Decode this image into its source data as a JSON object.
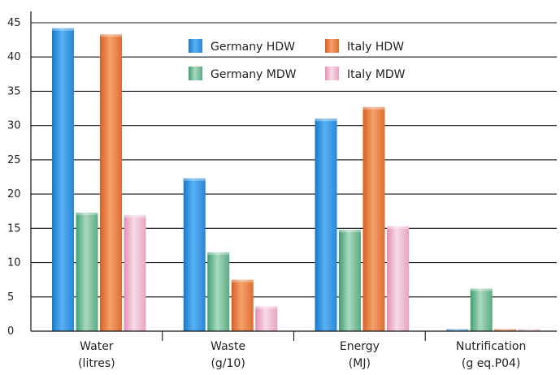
{
  "chart_data": {
    "type": "bar",
    "title": "",
    "xlabel": "",
    "ylabel": "",
    "ylim": [
      0,
      45
    ],
    "yticks": [
      0,
      5,
      10,
      15,
      20,
      25,
      30,
      35,
      40,
      45
    ],
    "grid": true,
    "legend_position": "top-center",
    "categories": [
      {
        "line1": "Water",
        "line2": "(litres)"
      },
      {
        "line1": "Waste",
        "line2": "(g/10)"
      },
      {
        "line1": "Energy",
        "line2": "(MJ)"
      },
      {
        "line1": "Nutrification",
        "line2": "(g eq.P04)"
      }
    ],
    "series": [
      {
        "name": "Germany HDW",
        "color": "#2b8fdc",
        "values": [
          44.2,
          22.3,
          31.0,
          0.3
        ]
      },
      {
        "name": "Germany MDW",
        "color": "#5faa86",
        "values": [
          17.3,
          11.5,
          14.8,
          6.2
        ]
      },
      {
        "name": "Italy HDW",
        "color": "#e2773a",
        "values": [
          43.3,
          7.5,
          32.7,
          0.3
        ]
      },
      {
        "name": "Italy MDW",
        "color": "#e6a8c2",
        "values": [
          16.9,
          3.6,
          15.3,
          0.3
        ]
      }
    ]
  }
}
